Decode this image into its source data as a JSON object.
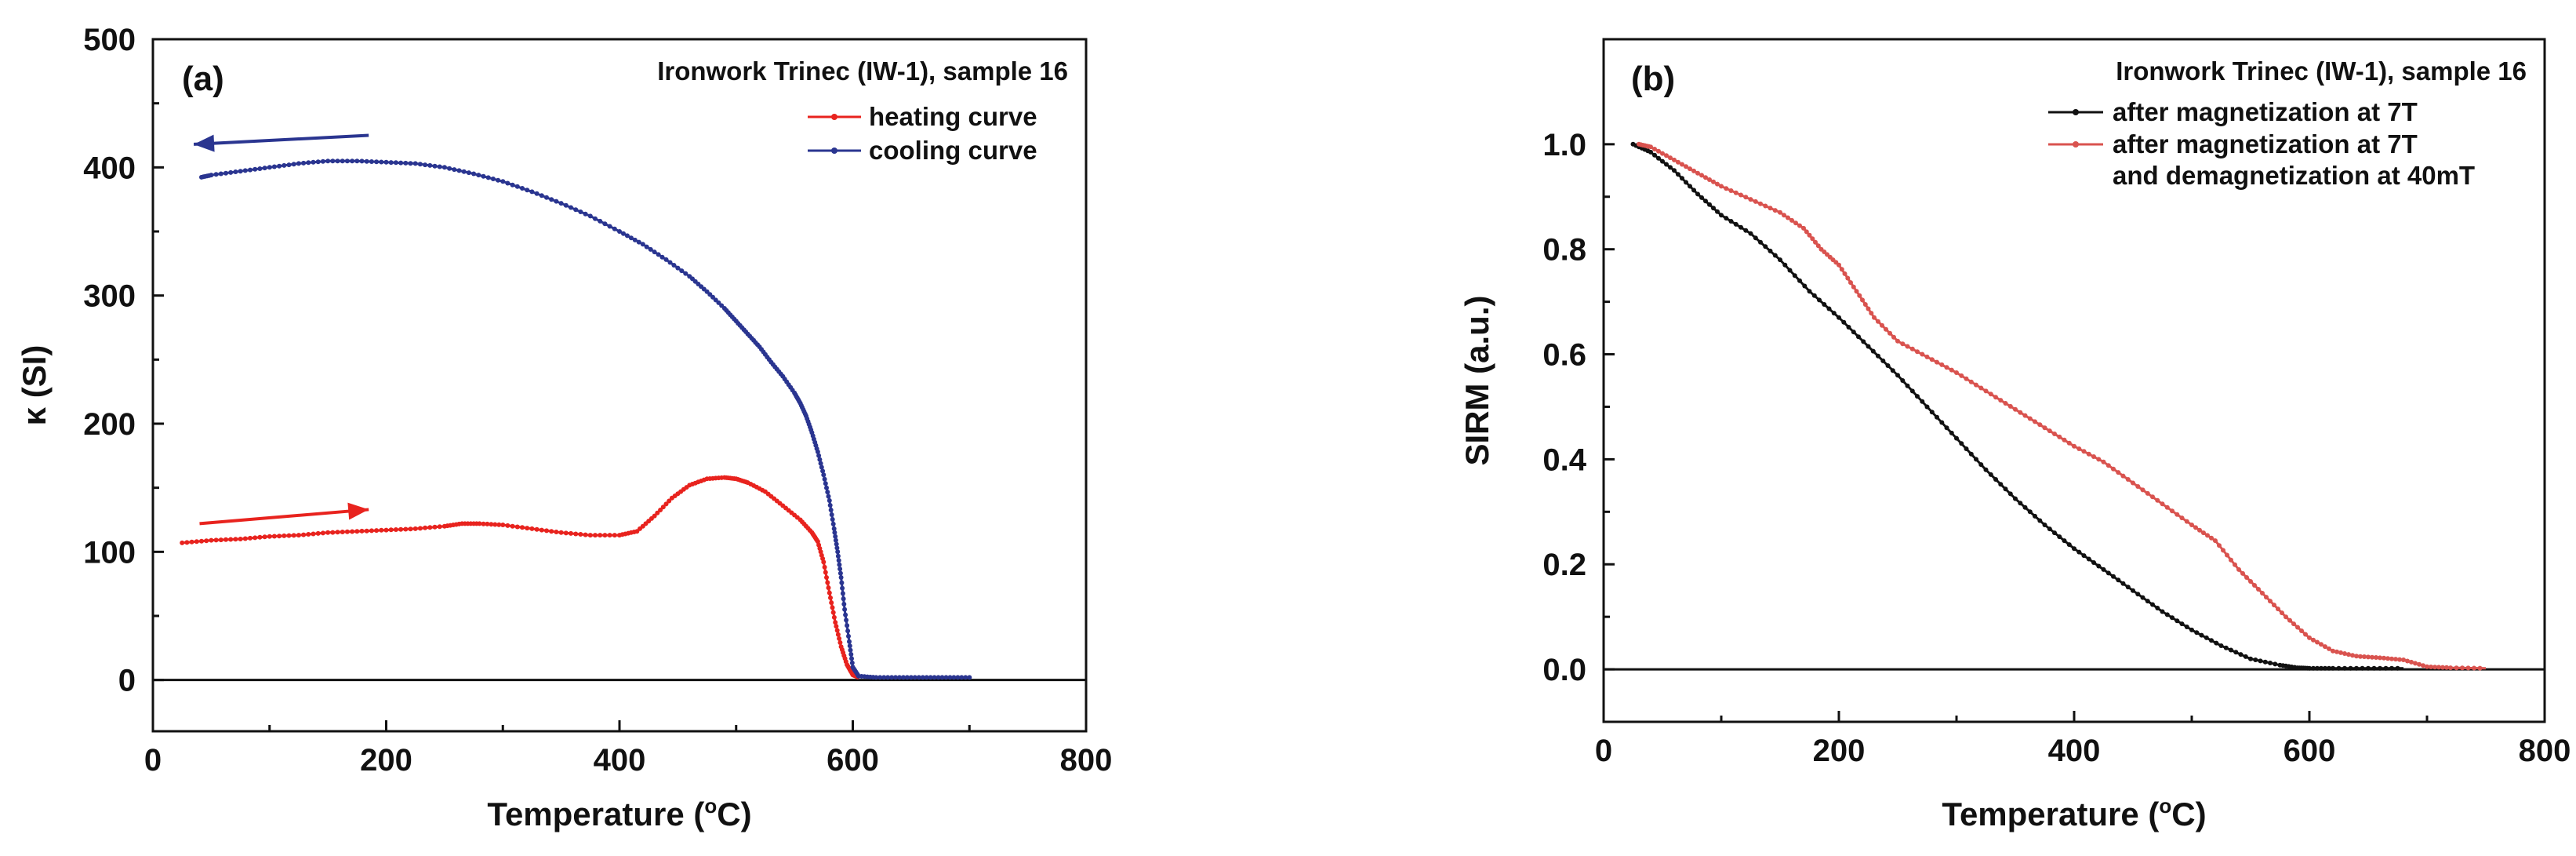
{
  "chart_data": [
    {
      "panel": "(a)",
      "type": "line",
      "title": "",
      "legend_title": "Ironwork Trinec (IW-1), sample 16",
      "legend_position": "top-right",
      "xlabel_main": "Temperature (",
      "xlabel_sup": "o",
      "xlabel_end": "C)",
      "ylabel": "κ (SI)",
      "xlim": [
        0,
        800
      ],
      "ylim": [
        -40,
        500
      ],
      "xticks": [
        "0",
        "200",
        "400",
        "600",
        "800"
      ],
      "yticks": [
        "0",
        "100",
        "200",
        "300",
        "400",
        "500"
      ],
      "xtick_values": [
        0,
        200,
        400,
        600,
        800
      ],
      "ytick_values": [
        0,
        100,
        200,
        300,
        400,
        500
      ],
      "zero_line": true,
      "series": [
        {
          "name": "heating curve",
          "color": "#e8231e",
          "x": [
            25,
            50,
            75,
            100,
            125,
            150,
            175,
            200,
            225,
            250,
            265,
            280,
            300,
            325,
            350,
            375,
            400,
            415,
            430,
            445,
            460,
            475,
            490,
            500,
            510,
            525,
            540,
            555,
            565,
            570,
            575,
            580,
            585,
            590,
            595,
            600,
            605
          ],
          "y": [
            107,
            109,
            110,
            112,
            113,
            115,
            116,
            117,
            118,
            120,
            122,
            122,
            121,
            118,
            115,
            113,
            113,
            116,
            128,
            142,
            152,
            157,
            158,
            157,
            154,
            147,
            136,
            125,
            115,
            108,
            92,
            68,
            45,
            26,
            12,
            4,
            2
          ]
        },
        {
          "name": "cooling curve",
          "color": "#2a3590",
          "x": [
            700,
            680,
            660,
            640,
            620,
            605,
            600,
            597,
            593,
            590,
            587,
            584,
            580,
            575,
            570,
            565,
            560,
            555,
            550,
            540,
            530,
            520,
            510,
            500,
            490,
            475,
            460,
            440,
            420,
            400,
            375,
            350,
            325,
            300,
            275,
            250,
            225,
            200,
            175,
            150,
            125,
            100,
            75,
            50,
            40
          ],
          "y": [
            2,
            2,
            2,
            2,
            2,
            3,
            10,
            30,
            55,
            80,
            100,
            118,
            140,
            160,
            178,
            193,
            206,
            216,
            224,
            237,
            248,
            260,
            270,
            280,
            290,
            303,
            315,
            328,
            340,
            350,
            362,
            372,
            381,
            389,
            395,
            400,
            403,
            404,
            405,
            405,
            403,
            400,
            397,
            394,
            392
          ]
        }
      ],
      "arrows": [
        {
          "direction": "left",
          "color": "#2a3590",
          "from": [
            185,
            425
          ],
          "to": [
            35,
            418
          ]
        },
        {
          "direction": "right",
          "color": "#e8231e",
          "from": [
            40,
            122
          ],
          "to": [
            185,
            133
          ]
        }
      ]
    },
    {
      "panel": "(b)",
      "type": "line",
      "title": "",
      "legend_title": "Ironwork Trinec (IW-1), sample 16",
      "legend_position": "top-right",
      "xlabel_main": "Temperature (",
      "xlabel_sup": "o",
      "xlabel_end": "C)",
      "ylabel": "SIRM (a.u.)",
      "xlim": [
        0,
        800
      ],
      "ylim": [
        -0.1,
        1.2
      ],
      "xticks": [
        "0",
        "200",
        "400",
        "600",
        "800"
      ],
      "yticks": [
        "0.0",
        "0.2",
        "0.4",
        "0.6",
        "0.8",
        "1.0"
      ],
      "xtick_values": [
        0,
        200,
        400,
        600,
        800
      ],
      "ytick_values": [
        0.0,
        0.2,
        0.4,
        0.6,
        0.8,
        1.0
      ],
      "zero_line": true,
      "series": [
        {
          "name": "after magnetization at 7T",
          "color": "#111111",
          "x": [
            25,
            40,
            60,
            80,
            100,
            125,
            150,
            175,
            200,
            225,
            250,
            275,
            300,
            325,
            350,
            375,
            400,
            425,
            450,
            475,
            500,
            525,
            550,
            575,
            590,
            600,
            620,
            650,
            680
          ],
          "y": [
            1.0,
            0.985,
            0.95,
            0.905,
            0.865,
            0.83,
            0.78,
            0.72,
            0.67,
            0.615,
            0.56,
            0.5,
            0.44,
            0.38,
            0.325,
            0.275,
            0.23,
            0.19,
            0.15,
            0.11,
            0.075,
            0.045,
            0.02,
            0.008,
            0.003,
            0.002,
            0.002,
            0.002,
            0.002
          ]
        },
        {
          "name": "after magnetization at 7T",
          "name_line2": "and demagnetization at 40mT",
          "color": "#d9534f",
          "x": [
            30,
            40,
            60,
            80,
            100,
            125,
            150,
            170,
            185,
            200,
            215,
            230,
            250,
            275,
            300,
            325,
            350,
            375,
            400,
            425,
            450,
            475,
            500,
            520,
            540,
            560,
            580,
            600,
            620,
            640,
            660,
            680,
            700,
            720,
            750
          ],
          "y": [
            1.0,
            0.995,
            0.97,
            0.945,
            0.92,
            0.895,
            0.87,
            0.84,
            0.8,
            0.77,
            0.72,
            0.67,
            0.625,
            0.595,
            0.565,
            0.53,
            0.495,
            0.46,
            0.425,
            0.395,
            0.355,
            0.315,
            0.275,
            0.245,
            0.19,
            0.145,
            0.1,
            0.06,
            0.035,
            0.025,
            0.022,
            0.018,
            0.005,
            0.003,
            0.002
          ]
        }
      ],
      "arrows": []
    }
  ]
}
